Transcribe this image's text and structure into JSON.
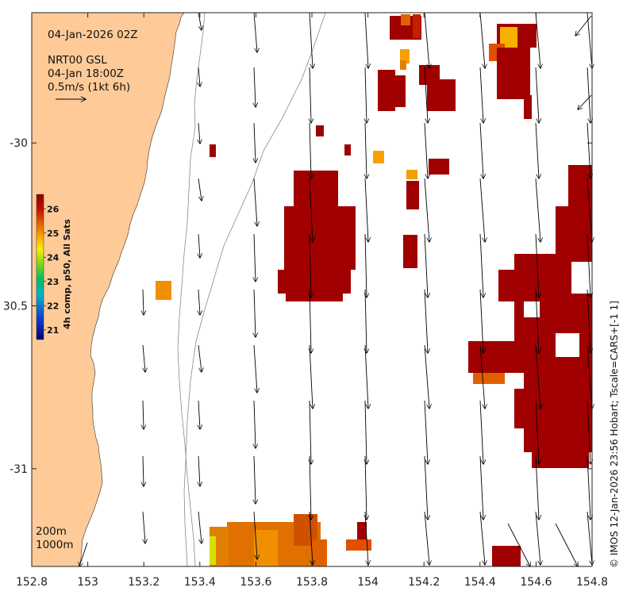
{
  "map": {
    "time_title": "04-Jan-2026 02Z",
    "vector_product": "NRT00 GSL",
    "vector_time": "04-Jan 18:00Z",
    "scale_label": "0.5m/s (1kt 6h)",
    "colorbar_title": "4h comp, p50, All Sats",
    "credit": "© IMOS 12-Jan-2026 23:56 Hobart; Tscale=CARS+[-1 1]",
    "isobath_labels": [
      "200m",
      "1000m"
    ],
    "colors": {
      "land": "#fecb98",
      "warm_sst": "#a00000",
      "arrow": "#000000",
      "isobath": "#888888"
    }
  },
  "axes": {
    "x_ticks": [
      {
        "value": 152.8,
        "label": "152.8"
      },
      {
        "value": 153,
        "label": "153"
      },
      {
        "value": 153.2,
        "label": "153.2"
      },
      {
        "value": 153.4,
        "label": "153.4"
      },
      {
        "value": 153.6,
        "label": "153.6"
      },
      {
        "value": 153.8,
        "label": "153.8"
      },
      {
        "value": 154,
        "label": "154"
      },
      {
        "value": 154.2,
        "label": "154.2"
      },
      {
        "value": 154.4,
        "label": "154.4"
      },
      {
        "value": 154.6,
        "label": "154.6"
      },
      {
        "value": 154.8,
        "label": "154.8"
      }
    ],
    "y_ticks": [
      {
        "value": -30,
        "label": "-30"
      },
      {
        "value": -30.5,
        "label": "30.5"
      },
      {
        "value": -31,
        "label": "-31"
      }
    ],
    "xlim": [
      152.8,
      154.8
    ],
    "ylim": [
      -31.3,
      -29.6
    ]
  },
  "colorbar": {
    "ticks": [
      {
        "value": 26,
        "label": "26"
      },
      {
        "value": 25,
        "label": "25"
      },
      {
        "value": 24,
        "label": "24"
      },
      {
        "value": 23,
        "label": "23"
      },
      {
        "value": 22,
        "label": "22"
      },
      {
        "value": 21,
        "label": "21"
      }
    ],
    "range": [
      20.6,
      26.6
    ]
  }
}
